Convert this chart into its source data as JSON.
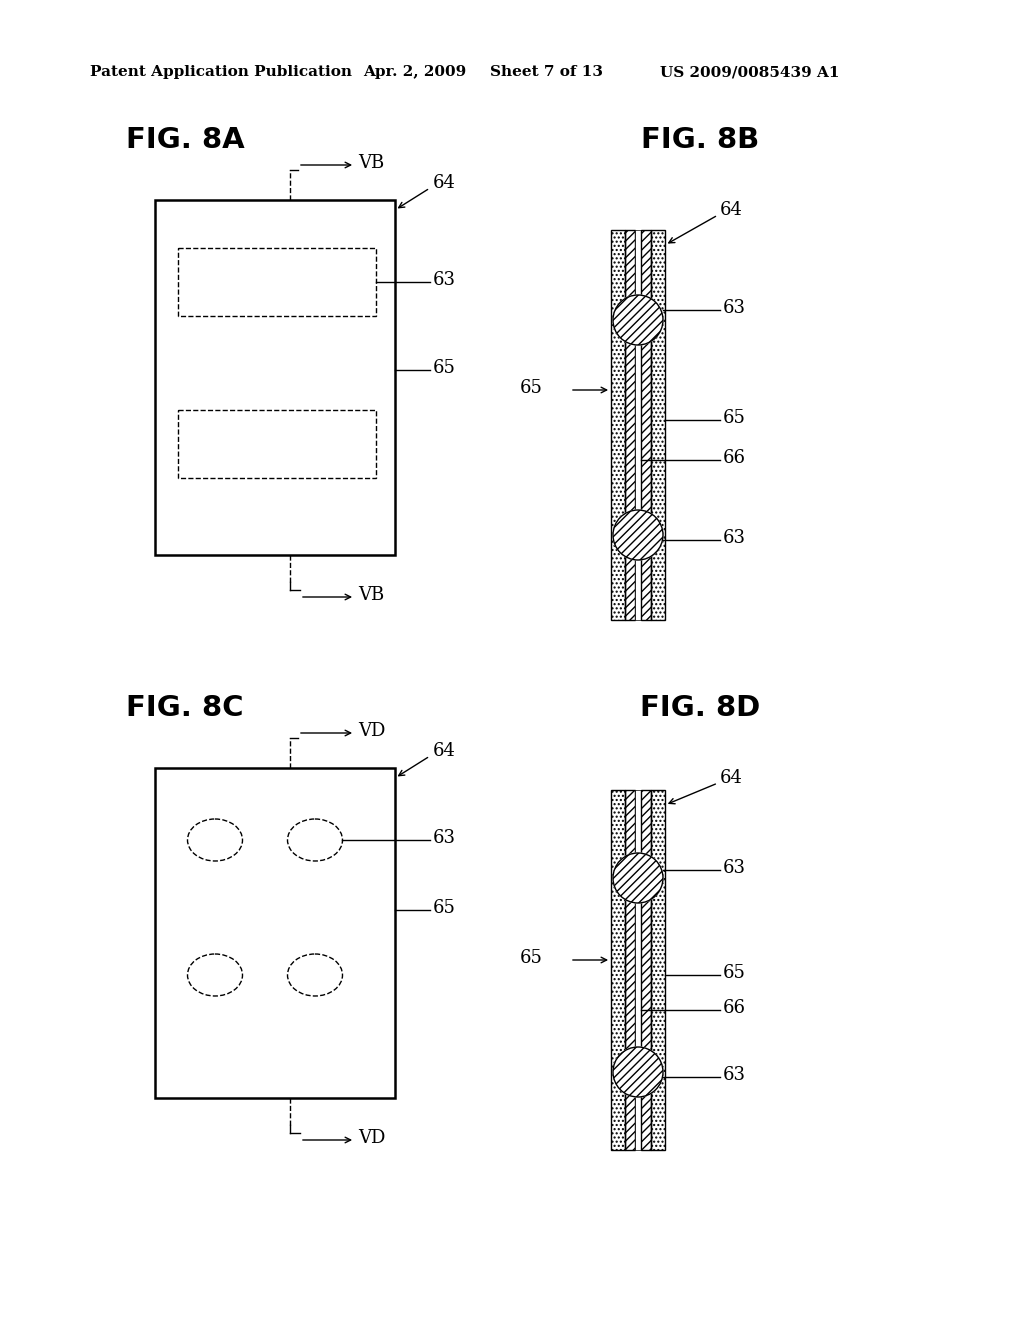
{
  "bg_color": "#ffffff",
  "header_left": "Patent Application Publication",
  "header_mid1": "Apr. 2, 2009",
  "header_mid2": "Sheet 7 of 13",
  "header_right": "US 2009/0085439 A1",
  "fig8A_title": "FIG. 8A",
  "fig8B_title": "FIG. 8B",
  "fig8C_title": "FIG. 8C",
  "fig8D_title": "FIG. 8D",
  "section_AB": "ⅤB",
  "section_CD": "ⅤD",
  "label_63": "63",
  "label_64": "64",
  "label_65": "65",
  "label_66": "66"
}
